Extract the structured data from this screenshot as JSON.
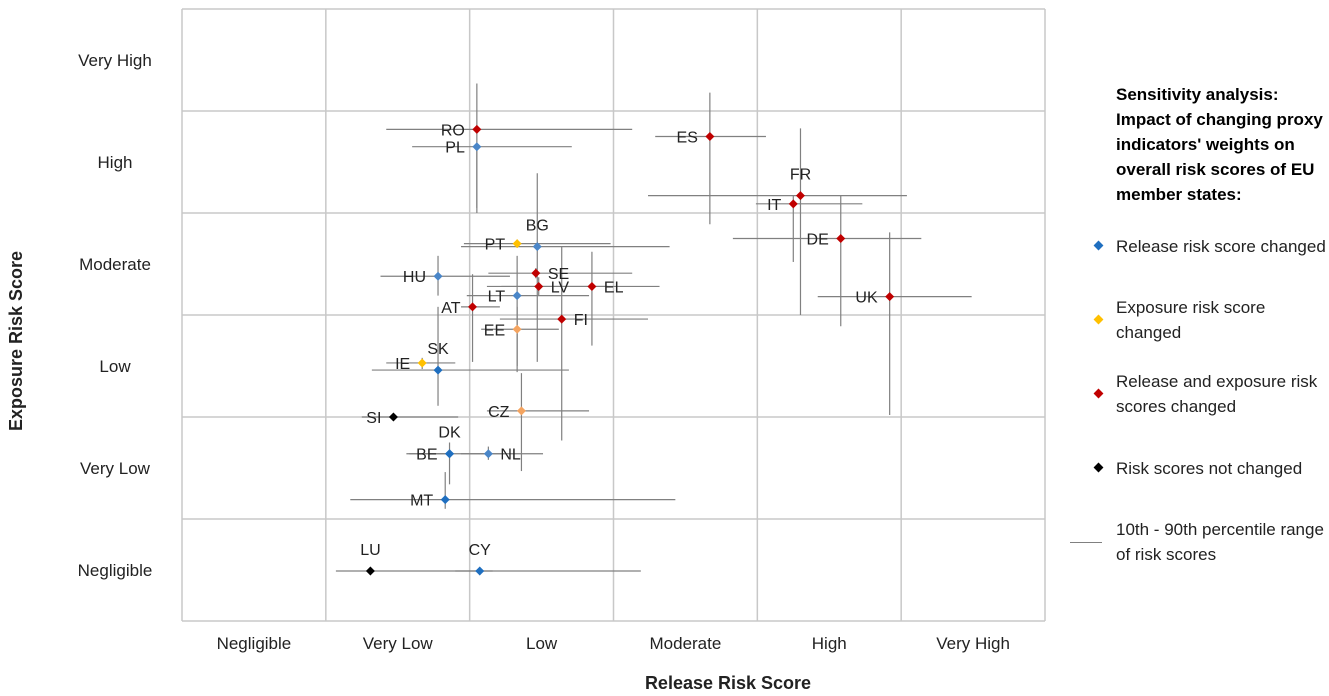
{
  "chart_data": {
    "type": "scatter",
    "xlabel": "Release Risk Score",
    "ylabel": "Exposure Risk Score",
    "x_categories": [
      "Negligible",
      "Very Low",
      "Low",
      "Moderate",
      "High",
      "Very High"
    ],
    "y_categories": [
      "Negligible",
      "Very Low",
      "Low",
      "Moderate",
      "High",
      "Very High"
    ],
    "xlim": [
      0,
      6
    ],
    "ylim": [
      0,
      6
    ],
    "grid": true,
    "legend_position": "right",
    "legend_title": "Sensitivity analysis: Impact of changing proxy indicators' weights on overall risk scores of EU member states:",
    "groups": [
      {
        "key": "release",
        "name": "Release risk score changed",
        "color": "#1f6fc0"
      },
      {
        "key": "exposure",
        "name": "Exposure risk score changed",
        "color": "#ffc000"
      },
      {
        "key": "both",
        "name": "Release and exposure risk scores changed",
        "color": "#c00000"
      },
      {
        "key": "none",
        "name": "Risk scores not changed",
        "color": "#000000"
      }
    ],
    "range_legend": "10th - 90th percentile range of risk scores",
    "range_color": "#808080",
    "points": [
      {
        "label": "RO",
        "x": 2.05,
        "y": 4.82,
        "group": "both",
        "x_range": [
          1.42,
          3.13
        ],
        "y_range": [
          4.0,
          5.27
        ],
        "label_side": "left"
      },
      {
        "label": "PL",
        "x": 2.05,
        "y": 4.65,
        "group": "release",
        "color": "#4a86c8",
        "x_range": [
          1.6,
          2.71
        ],
        "y_range": [
          4.05,
          4.68
        ],
        "label_side": "left"
      },
      {
        "label": "ES",
        "x": 3.67,
        "y": 4.75,
        "group": "both",
        "x_range": [
          3.29,
          4.06
        ],
        "y_range": [
          3.89,
          5.18
        ],
        "label_side": "left"
      },
      {
        "label": "FR",
        "x": 4.3,
        "y": 4.17,
        "group": "both",
        "x_range": [
          3.24,
          5.04
        ],
        "y_range": [
          3.0,
          4.83
        ],
        "label_side": "above"
      },
      {
        "label": "IT",
        "x": 4.25,
        "y": 4.09,
        "group": "both",
        "x_range": [
          3.99,
          4.73
        ],
        "y_range": [
          3.52,
          4.17
        ],
        "label_side": "left"
      },
      {
        "label": "DE",
        "x": 4.58,
        "y": 3.75,
        "group": "both",
        "x_range": [
          3.83,
          5.14
        ],
        "y_range": [
          2.89,
          4.17
        ],
        "label_side": "left"
      },
      {
        "label": "UK",
        "x": 4.92,
        "y": 3.18,
        "group": "both",
        "x_range": [
          4.42,
          5.49
        ],
        "y_range": [
          2.02,
          3.81
        ],
        "label_side": "left"
      },
      {
        "label": "BG",
        "x": 2.47,
        "y": 3.67,
        "group": "release",
        "color": "#4a86c8",
        "x_range": [
          1.94,
          3.39
        ],
        "y_range": [
          2.54,
          4.39
        ],
        "label_side": "above"
      },
      {
        "label": "PT",
        "x": 2.33,
        "y": 3.7,
        "group": "exposure",
        "x_range": [
          1.96,
          2.98
        ],
        "y_range": [
          3.66,
          3.74
        ],
        "label_side": "left"
      },
      {
        "label": "HU",
        "x": 1.78,
        "y": 3.38,
        "group": "release",
        "color": "#4a86c8",
        "x_range": [
          1.38,
          2.28
        ],
        "y_range": [
          3.19,
          3.58
        ],
        "label_side": "left"
      },
      {
        "label": "SE",
        "x": 2.46,
        "y": 3.41,
        "group": "both",
        "x_range": [
          2.13,
          3.13
        ],
        "y_range": [
          3.36,
          3.46
        ],
        "label_side": "right"
      },
      {
        "label": "LV",
        "x": 2.48,
        "y": 3.28,
        "group": "both",
        "x_range": [
          2.12,
          2.96
        ],
        "y_range": [
          3.19,
          3.37
        ],
        "label_side": "right"
      },
      {
        "label": "EL",
        "x": 2.85,
        "y": 3.28,
        "group": "both",
        "x_range": [
          2.22,
          3.32
        ],
        "y_range": [
          2.7,
          3.62
        ],
        "label_side": "right"
      },
      {
        "label": "LT",
        "x": 2.33,
        "y": 3.19,
        "group": "release",
        "color": "#4a86c8",
        "x_range": [
          1.98,
          2.83
        ],
        "y_range": [
          2.5,
          3.58
        ],
        "label_side": "left"
      },
      {
        "label": "AT",
        "x": 2.02,
        "y": 3.08,
        "group": "both",
        "x_range": [
          1.94,
          2.21
        ],
        "y_range": [
          2.54,
          3.4
        ],
        "label_side": "left"
      },
      {
        "label": "FI",
        "x": 2.64,
        "y": 2.96,
        "group": "both",
        "x_range": [
          2.21,
          3.24
        ],
        "y_range": [
          1.77,
          3.67
        ],
        "label_side": "right"
      },
      {
        "label": "EE",
        "x": 2.33,
        "y": 2.86,
        "group": "exposure",
        "color": "#f4a460",
        "x_range": [
          2.08,
          2.62
        ],
        "y_range": [
          2.44,
          3.08
        ],
        "label_side": "left"
      },
      {
        "label": "IE",
        "x": 1.67,
        "y": 2.53,
        "group": "exposure",
        "x_range": [
          1.42,
          1.9
        ],
        "y_range": [
          2.47,
          2.58
        ],
        "label_side": "left"
      },
      {
        "label": "SK",
        "x": 1.78,
        "y": 2.46,
        "group": "release",
        "x_range": [
          1.32,
          2.69
        ],
        "y_range": [
          2.11,
          3.08
        ],
        "label_side": "above"
      },
      {
        "label": "SI",
        "x": 1.47,
        "y": 2.0,
        "group": "none",
        "x_range": [
          1.25,
          1.92
        ],
        "y_range": [
          1.97,
          2.03
        ],
        "label_side": "left"
      },
      {
        "label": "CZ",
        "x": 2.36,
        "y": 2.06,
        "group": "exposure",
        "color": "#f4a460",
        "x_range": [
          2.12,
          2.83
        ],
        "y_range": [
          1.47,
          2.43
        ],
        "label_side": "left"
      },
      {
        "label": "DK",
        "x": 1.86,
        "y": 1.64,
        "group": "release",
        "x_range": [
          1.58,
          1.88
        ],
        "y_range": [
          1.34,
          1.75
        ],
        "label_side": "above"
      },
      {
        "label": "BE",
        "x": 1.86,
        "y": 1.64,
        "group": "release",
        "x_range": [
          1.56,
          2.24
        ],
        "y_range": [
          1.6,
          1.68
        ],
        "label_side": "left"
      },
      {
        "label": "NL",
        "x": 2.13,
        "y": 1.64,
        "group": "release",
        "color": "#4a86c8",
        "x_range": [
          1.94,
          2.51
        ],
        "y_range": [
          1.58,
          1.71
        ],
        "label_side": "right"
      },
      {
        "label": "MT",
        "x": 1.83,
        "y": 1.19,
        "group": "release",
        "x_range": [
          1.17,
          3.43
        ],
        "y_range": [
          1.1,
          1.46
        ],
        "label_side": "left"
      },
      {
        "label": "LU",
        "x": 1.31,
        "y": 0.49,
        "group": "none",
        "x_range": [
          1.07,
          2.16
        ],
        "y_range": [
          0.45,
          0.53
        ],
        "label_side": "above"
      },
      {
        "label": "CY",
        "x": 2.07,
        "y": 0.49,
        "group": "release",
        "x_range": [
          1.9,
          3.19
        ],
        "y_range": [
          0.45,
          0.53
        ],
        "label_side": "above"
      }
    ]
  }
}
